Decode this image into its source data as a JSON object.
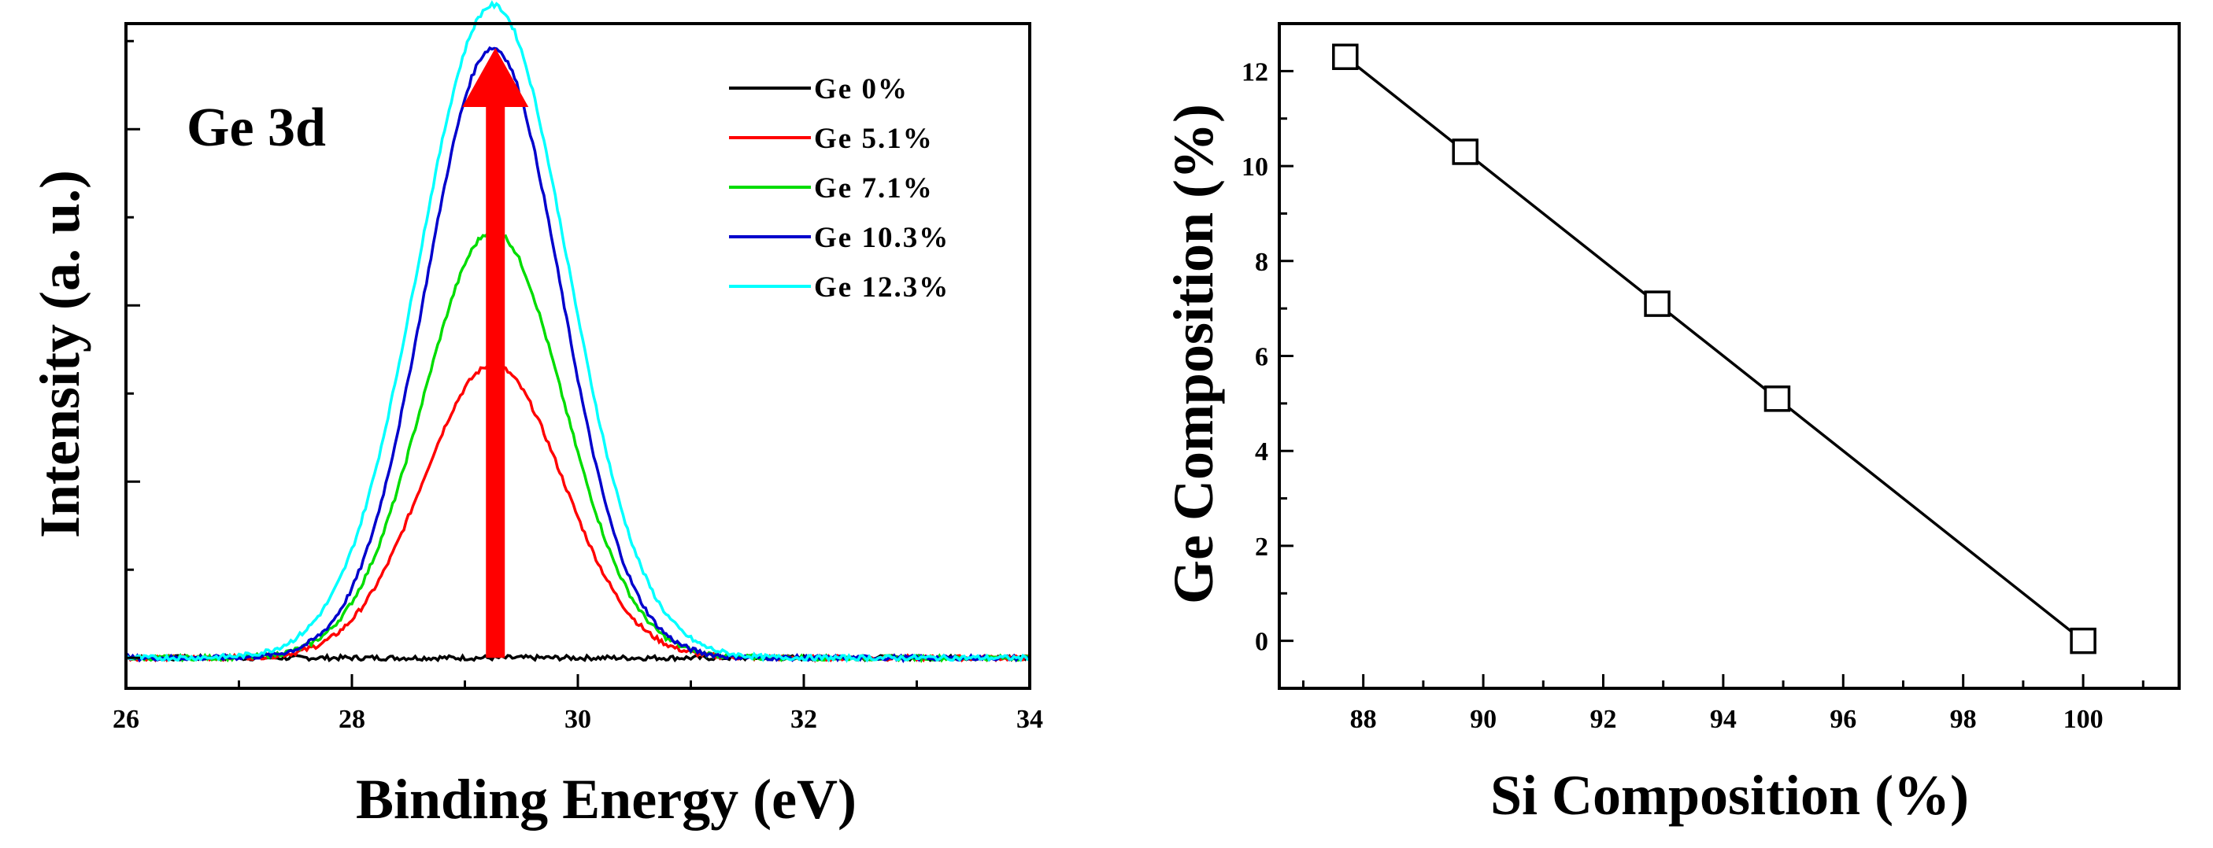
{
  "chart_data": [
    {
      "type": "line",
      "panel_label": "Ge 3d",
      "xlabel": "Binding Energy (eV)",
      "ylabel": "Intensity (a. u.)",
      "xlim": [
        26,
        34
      ],
      "ylim": [
        -0.05,
        1.04
      ],
      "x_ticks": [
        "26",
        "28",
        "30",
        "32",
        "34"
      ],
      "legend_position": "top-right",
      "peak_center_eV": 29.25,
      "baseline": 0.0,
      "series": [
        {
          "name": "Ge 0%",
          "color": "#000000",
          "peak": 0.0,
          "sigma": 0.62
        },
        {
          "name": "Ge 5.1%",
          "color": "#ff0000",
          "peak": 0.48,
          "sigma": 0.62
        },
        {
          "name": "Ge 7.1%",
          "color": "#00dd00",
          "peak": 0.7,
          "sigma": 0.62
        },
        {
          "name": "Ge 10.3%",
          "color": "#0000cc",
          "peak": 1.0,
          "sigma": 0.6
        },
        {
          "name": "Ge 12.3%",
          "color": "#00ffff",
          "peak": 1.07,
          "sigma": 0.66
        }
      ],
      "annotation": {
        "type": "arrow",
        "direction": "up",
        "color": "#ff0000",
        "x_eV": 29.27,
        "y_from": 0.0,
        "y_to": 1.0
      }
    },
    {
      "type": "line",
      "xlabel": "Si Composition (%)",
      "ylabel": "Ge Composition (%)",
      "xlim": [
        86.6,
        101.6
      ],
      "ylim": [
        -1,
        13
      ],
      "x_ticks": [
        88,
        90,
        92,
        94,
        96,
        98,
        100
      ],
      "y_ticks": [
        0,
        2,
        4,
        6,
        8,
        10,
        12
      ],
      "marker": "open-square",
      "x": [
        87.7,
        89.7,
        92.9,
        94.9,
        100
      ],
      "y": [
        12.3,
        10.3,
        7.1,
        5.1,
        0
      ]
    }
  ]
}
